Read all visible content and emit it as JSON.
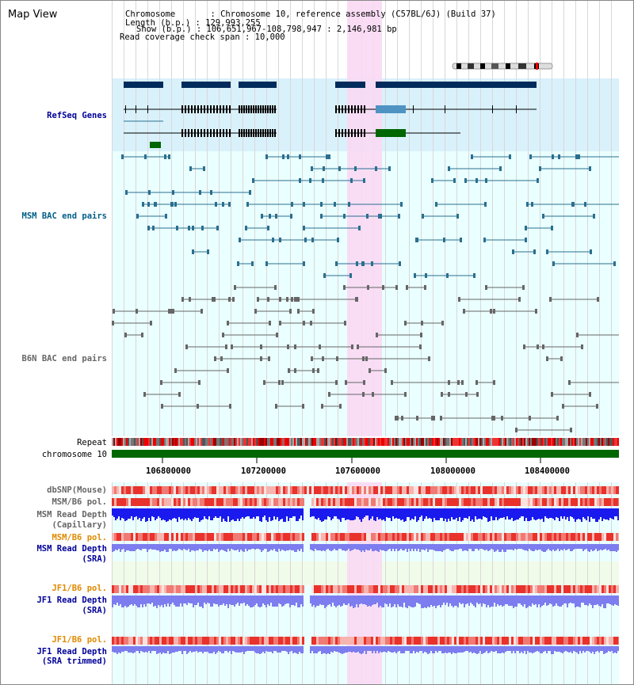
{
  "view_title": "Map View",
  "info": {
    "chromosome": "Chromosome       : Chromosome 10, reference assembly (C57BL/6J) (Build 37)",
    "length": "Length (b.p.) : 129,993,255",
    "show": "Show (b.p.) : 106,651,967-108,798,947 : 2,146,981 bp",
    "coverage": "Read coverage check span : 10,000"
  },
  "colors": {
    "refseq_bg": "#d9f1fb",
    "panel_bg": "#eaffff",
    "highlight": "#f9d9f4",
    "gene_dark": "#002b5c",
    "gene_blue": "#4f93c3",
    "gene_green": "#006600",
    "msm_bac": "#2a6f8f",
    "b6n_bac": "#666666",
    "snp_red": "#e8322b",
    "depth_blue": "#1a1aee",
    "depth_light": "#7d7def",
    "label_navy": "#000099",
    "label_orange": "#e08a00"
  },
  "tracks": {
    "refseq": "RefSeq Genes",
    "msm_bac": "MSM BAC end pairs",
    "b6n_bac": "B6N BAC end pairs",
    "repeat": "Repeat",
    "chromosome": "chromosome 10",
    "dbsnp": "dbSNP(Mouse)",
    "msm_b6_pol_cap": "MSM/B6 pol.",
    "msm_depth_cap_1": "MSM Read Depth",
    "msm_depth_cap_2": "(Capillary)",
    "msm_b6_pol_sra": "MSM/B6 pol.",
    "msm_depth_sra_1": "MSM Read Depth",
    "msm_depth_sra_2": "(SRA)",
    "jf1_pol_sra": "JF1/B6 pol.",
    "jf1_depth_sra_1": "JF1 Read Depth",
    "jf1_depth_sra_2": "(SRA)",
    "jf1_pol_trim": "JF1/B6 pol.",
    "jf1_depth_trim_1": "JF1 Read Depth",
    "jf1_depth_trim_2": "(SRA trimmed)"
  },
  "axis": {
    "ticks": [
      "106800000",
      "107200000",
      "107600000",
      "108000000",
      "108400000"
    ]
  }
}
